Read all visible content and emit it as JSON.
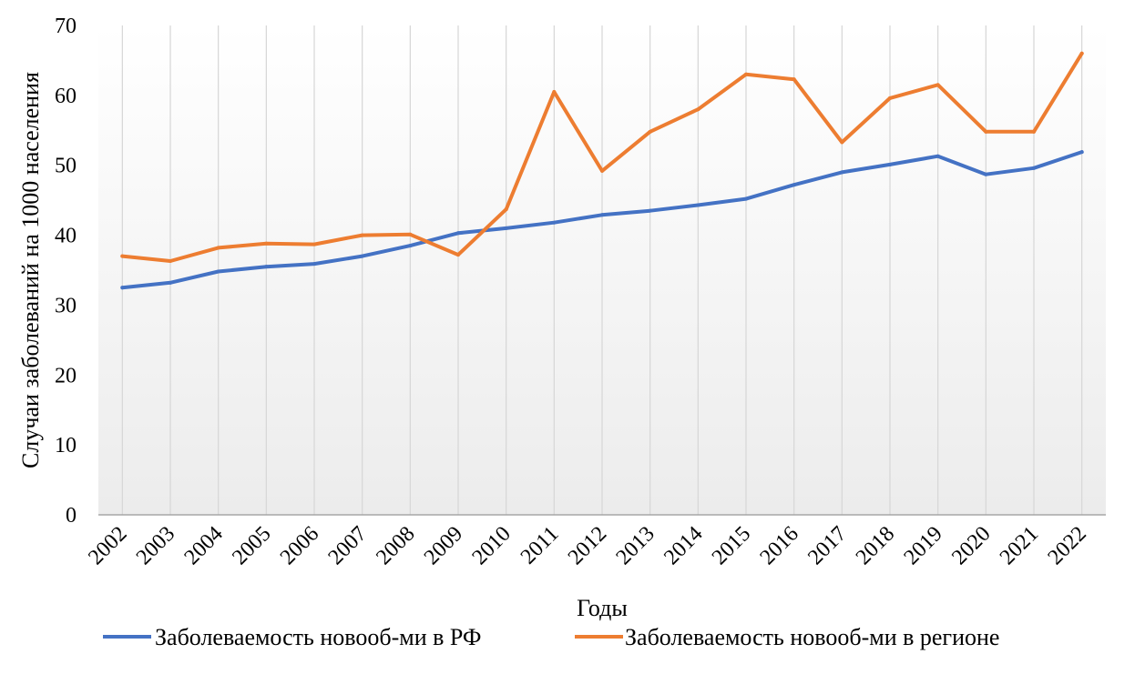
{
  "chart_data": {
    "type": "line",
    "title": "",
    "xlabel": "Годы",
    "ylabel": "Случаи заболеваний на 1000 населения",
    "ylim": [
      0,
      70
    ],
    "yticks": [
      "0",
      "10",
      "20",
      "30",
      "40",
      "50",
      "60",
      "70"
    ],
    "categories": [
      "2002",
      "2003",
      "2004",
      "2005",
      "2006",
      "2007",
      "2008",
      "2009",
      "2010",
      "2011",
      "2012",
      "2013",
      "2014",
      "2015",
      "2016",
      "2017",
      "2018",
      "2019",
      "2020",
      "2021",
      "2022"
    ],
    "series": [
      {
        "name": "Заболеваемость новооб-ми в РФ",
        "color": "#4472C4",
        "values": [
          32.5,
          33.2,
          34.8,
          35.5,
          35.9,
          37.0,
          38.5,
          40.3,
          41.0,
          41.8,
          42.9,
          43.5,
          44.3,
          45.2,
          47.2,
          49.0,
          50.1,
          51.3,
          48.7,
          49.6,
          51.9
        ]
      },
      {
        "name": "Заболеваемость новооб-ми в регионе",
        "color": "#ED7D31",
        "values": [
          37.0,
          36.3,
          38.2,
          38.8,
          38.7,
          40.0,
          40.1,
          37.2,
          43.7,
          60.5,
          49.2,
          54.8,
          58.0,
          63.0,
          62.3,
          53.3,
          59.6,
          61.5,
          54.8,
          54.8,
          66.0
        ]
      }
    ],
    "grid": "vertical",
    "legend_position": "bottom"
  }
}
